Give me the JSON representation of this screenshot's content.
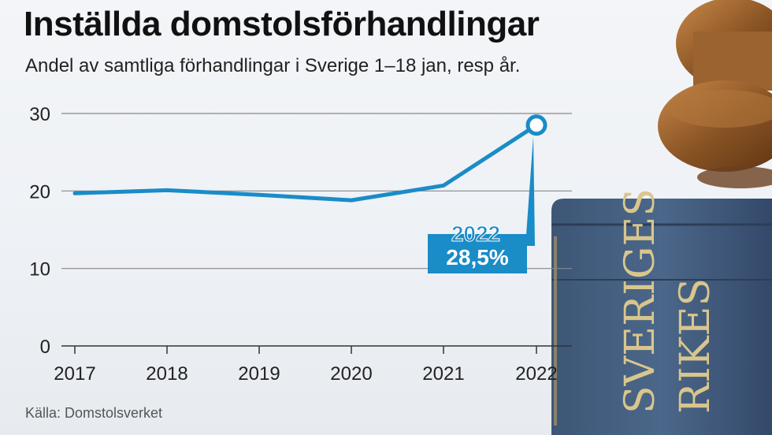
{
  "header": {
    "title": "Inställda domstolsförhandlingar",
    "subtitle": "Andel av samtliga förhandlingar i Sverige 1–18 jan, resp år."
  },
  "footer": {
    "source": "Källa: Domstolsverket"
  },
  "colors": {
    "line": "#1a8cc7",
    "callout": "#1a8cc7",
    "grid": "#888888",
    "text": "#222222"
  },
  "chart_data": {
    "type": "line",
    "title": "Inställda domstolsförhandlingar",
    "subtitle": "Andel av samtliga förhandlingar i Sverige 1–18 jan, resp år.",
    "x": [
      "2017",
      "2018",
      "2019",
      "2020",
      "2021",
      "2022"
    ],
    "series": [
      {
        "values": [
          19.7,
          20.1,
          19.5,
          18.8,
          20.7,
          28.5
        ]
      }
    ],
    "ylim": [
      0,
      30
    ],
    "yticks": [
      "0",
      "10",
      "20",
      "30"
    ],
    "grid": true,
    "annotation": {
      "x": "2022",
      "year_label": "2022",
      "value_label": "28,5%"
    }
  }
}
